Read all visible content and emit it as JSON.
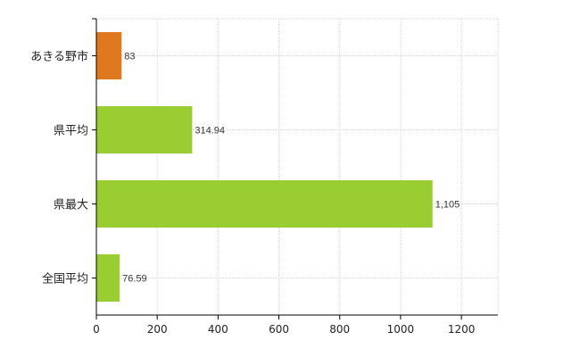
{
  "chart_data": {
    "type": "bar",
    "orientation": "horizontal",
    "categories": [
      "あきる野市",
      "県平均",
      "県最大",
      "全国平均"
    ],
    "values": [
      83,
      314.94,
      1105,
      76.59
    ],
    "data_labels": [
      "83",
      "314.94",
      "1,105",
      "76.59"
    ],
    "bar_colors": [
      "#e07820",
      "#9acd32",
      "#9acd32",
      "#9acd32"
    ],
    "xlim": [
      0,
      1320
    ],
    "x_ticks": [
      0,
      200,
      400,
      600,
      800,
      1000,
      1200
    ],
    "grid": true,
    "title": "",
    "xlabel": "",
    "ylabel": ""
  }
}
